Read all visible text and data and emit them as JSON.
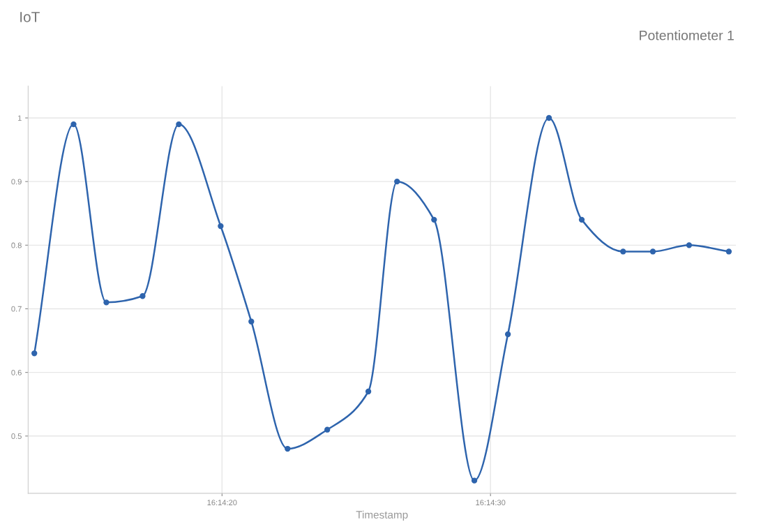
{
  "chart_data": {
    "type": "line",
    "title": "IoT",
    "subtitle": "Potentiometer 1",
    "xlabel": "Timestamp",
    "x": [
      16.236947,
      16.237353,
      16.237692,
      16.238067,
      16.238442,
      16.238875,
      16.239192,
      16.239567,
      16.239978,
      16.240403,
      16.2407,
      16.241083,
      16.2415,
      16.241847,
      16.242272,
      16.242611,
      16.243039,
      16.243347,
      16.243722,
      16.244133
    ],
    "series": [
      {
        "color": "#2e64ad",
        "values": [
          0.63,
          0.99,
          0.71,
          0.72,
          0.99,
          0.83,
          0.68,
          0.48,
          0.51,
          0.57,
          0.9,
          0.84,
          0.43,
          0.66,
          1.0,
          0.84,
          0.79,
          0.79,
          0.8,
          0.79
        ]
      }
    ],
    "xlim": [
      16.236883,
      16.244206
    ],
    "xticks": [
      {
        "value": 16.238889,
        "label": "16:14:20"
      },
      {
        "value": 16.241667,
        "label": "16:14:30"
      }
    ],
    "ylim": [
      0.41,
      1.05
    ],
    "yticks": [
      0.5,
      0.6,
      0.7,
      0.8,
      0.9,
      {
        "value": 1,
        "label": "1"
      }
    ],
    "grid": true,
    "marker": "circle",
    "line_style": "solid",
    "legend": false
  }
}
